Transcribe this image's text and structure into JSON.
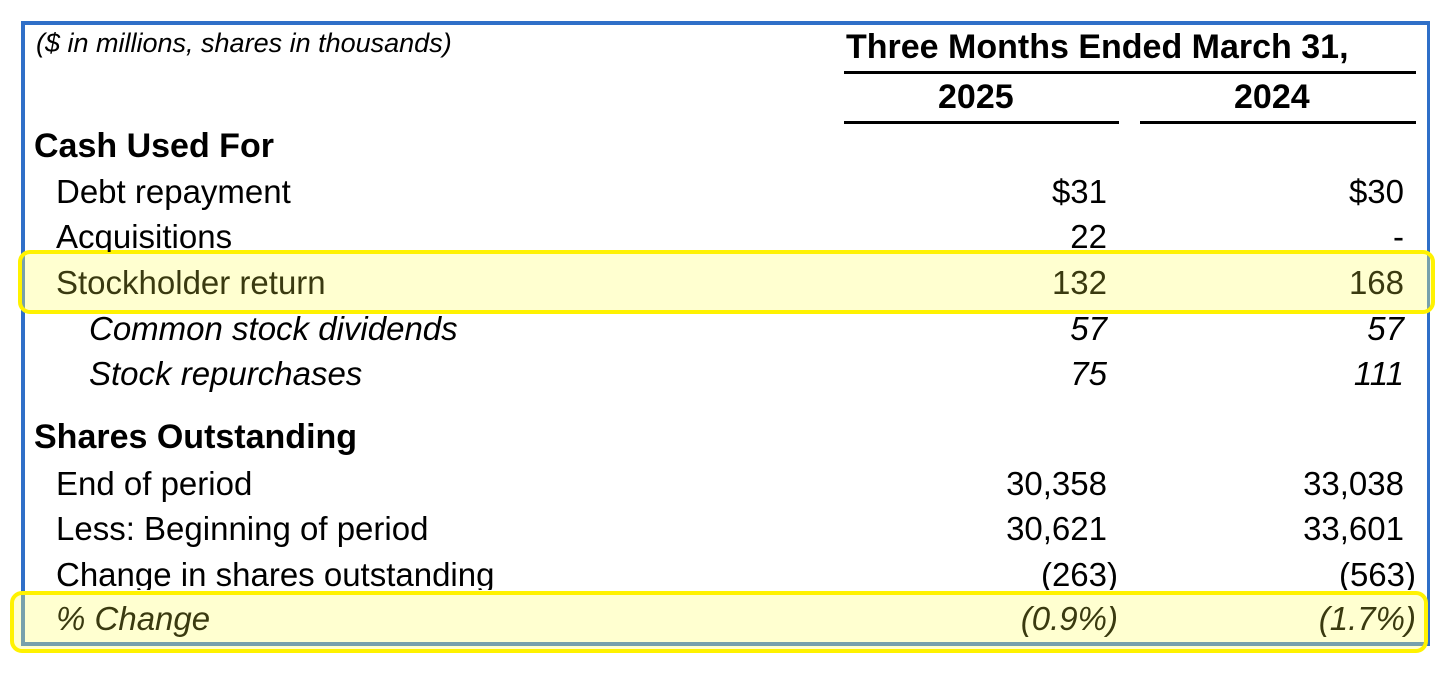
{
  "header": {
    "units": "($ in millions, shares in thousands)",
    "period": "Three Months Ended March 31,",
    "years": [
      "2025",
      "2024"
    ]
  },
  "cash_used_for": {
    "title": "Cash Used For",
    "rows": [
      {
        "label": "Debt repayment",
        "v2025": "$31",
        "v2024": "$30"
      },
      {
        "label": "Acquisitions",
        "v2025": "22",
        "v2024": "-"
      },
      {
        "label": "Stockholder return",
        "v2025": "132",
        "v2024": "168"
      },
      {
        "label": "Common stock dividends",
        "v2025": "57",
        "v2024": "57"
      },
      {
        "label": "Stock repurchases",
        "v2025": "75",
        "v2024": "111"
      }
    ]
  },
  "shares_outstanding": {
    "title": "Shares Outstanding",
    "rows": [
      {
        "label": "End of period",
        "v2025": "30,358",
        "v2024": "33,038"
      },
      {
        "label": "Less: Beginning of period",
        "v2025": "30,621",
        "v2024": "33,601"
      },
      {
        "label": "Change in shares outstanding",
        "v2025": "(263)",
        "v2024": "(563)"
      },
      {
        "label": "% Change",
        "v2025": "(0.9%)",
        "v2024": "(1.7%)"
      }
    ]
  },
  "colors": {
    "frame_border": "#2F6FC8",
    "highlight_border": "#FFF200",
    "highlight_fill": "#FFFF78",
    "highlight_text": "#3A3A10"
  }
}
